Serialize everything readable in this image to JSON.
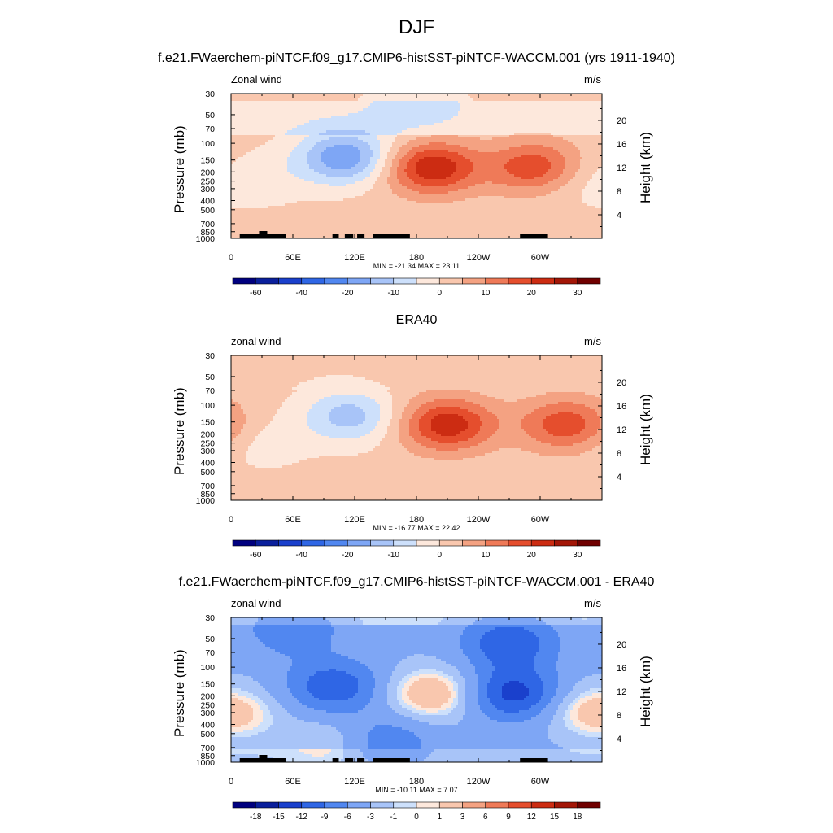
{
  "figure": {
    "title": "DJF",
    "x_tick_labels": [
      "0",
      "60E",
      "120E",
      "180",
      "120W",
      "60W"
    ],
    "pressure_ticks": [
      "30",
      "50",
      "70",
      "100",
      "150",
      "200",
      "250",
      "300",
      "400",
      "500",
      "700",
      "850",
      "1000"
    ],
    "height_ticks": [
      "20",
      "16",
      "12",
      "8",
      "4"
    ],
    "left_axis_title": "Pressure (mb)",
    "right_axis_title": "Height (km)"
  },
  "chart_data": [
    {
      "type": "heatmap",
      "title": "f.e21.FWaerchem-piNTCF.f09_g17.CMIP6-histSST-piNTCF-WACCM.001 (yrs 1911-1940)",
      "variable": "Zonal wind",
      "units": "m/s",
      "xlim": [
        0,
        360
      ],
      "ylim_pressure_mb": [
        30,
        1000
      ],
      "stats": "MIN = -21.34  MAX =  23.11",
      "colorbar_labels": [
        "-60",
        "-40",
        "-20",
        "-10",
        "0",
        "10",
        "20",
        "30"
      ],
      "features": [
        {
          "lon": 195,
          "p": 180,
          "value": 23
        },
        {
          "lon": 295,
          "p": 180,
          "value": 18
        },
        {
          "lon": 110,
          "p": 140,
          "value": -21
        },
        {
          "lon": 30,
          "p": 240,
          "value": -4
        },
        {
          "lon": 330,
          "p": 250,
          "value": -4
        },
        {
          "lon": 180,
          "p": 45,
          "value": -5
        }
      ]
    },
    {
      "type": "heatmap",
      "title": "ERA40",
      "variable": "zonal wind",
      "units": "m/s",
      "xlim": [
        0,
        360
      ],
      "ylim_pressure_mb": [
        30,
        1000
      ],
      "stats": "MIN = -16.77  MAX =  22.42",
      "colorbar_labels": [
        "-60",
        "-40",
        "-20",
        "-10",
        "0",
        "10",
        "20",
        "30"
      ],
      "features": [
        {
          "lon": 210,
          "p": 160,
          "value": 22
        },
        {
          "lon": 325,
          "p": 160,
          "value": 17
        },
        {
          "lon": 115,
          "p": 130,
          "value": -14
        },
        {
          "lon": 30,
          "p": 250,
          "value": -4
        },
        {
          "lon": 170,
          "p": 35,
          "value": 2
        }
      ]
    },
    {
      "type": "heatmap",
      "title": "f.e21.FWaerchem-piNTCF.f09_g17.CMIP6-histSST-piNTCF-WACCM.001 - ERA40",
      "variable": "zonal wind",
      "units": "m/s",
      "xlim": [
        0,
        360
      ],
      "ylim_pressure_mb": [
        30,
        1000
      ],
      "stats": "MIN = -10.11  MAX =   7.07",
      "colorbar_labels": [
        "-18",
        "-15",
        "-12",
        "-9",
        "-6",
        "-3",
        "-1",
        "0",
        "1",
        "3",
        "6",
        "9",
        "12",
        "15",
        "18"
      ],
      "features": [
        {
          "lon": 195,
          "p": 190,
          "value": 7
        },
        {
          "lon": 270,
          "p": 55,
          "value": -8
        },
        {
          "lon": 275,
          "p": 190,
          "value": -10
        },
        {
          "lon": 100,
          "p": 160,
          "value": -8
        },
        {
          "lon": 5,
          "p": 320,
          "value": 4
        },
        {
          "lon": 100,
          "p": 600,
          "value": 3
        },
        {
          "lon": 340,
          "p": 260,
          "value": 3
        },
        {
          "lon": 60,
          "p": 40,
          "value": -5
        },
        {
          "lon": 150,
          "p": 600,
          "value": -5
        }
      ]
    }
  ],
  "colors": {
    "full_scale": [
      "#00007f",
      "#0a1f9c",
      "#1a40cc",
      "#2f66e5",
      "#5187f0",
      "#7ea6f5",
      "#a8c4f8",
      "#cde0fb",
      "#fde8dc",
      "#f9c7ae",
      "#f4a282",
      "#ef7a58",
      "#e54e2d",
      "#cc2c12",
      "#a31607",
      "#700000"
    ],
    "diff_scale": [
      "#00007f",
      "#0a1f9c",
      "#1a40cc",
      "#2f66e5",
      "#5187f0",
      "#7ea6f5",
      "#a8c4f8",
      "#cde0fb",
      "#fde8dc",
      "#f9c7ae",
      "#f4a282",
      "#ef7a58",
      "#e54e2d",
      "#cc2c12",
      "#a31607",
      "#700000"
    ]
  }
}
